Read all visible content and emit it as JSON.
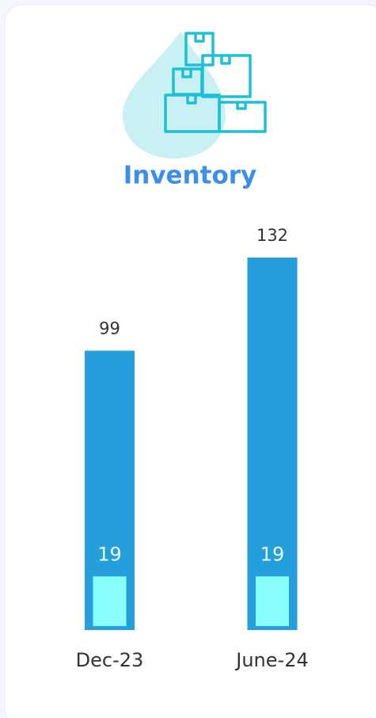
{
  "chart_data": {
    "type": "bar",
    "title": "Inventory",
    "categories": [
      "Dec-23",
      "June-24"
    ],
    "series": [
      {
        "color": "#259fdb",
        "values": [
          99,
          132
        ]
      },
      {
        "color": "#8affff",
        "values": [
          19,
          19
        ]
      }
    ]
  }
}
